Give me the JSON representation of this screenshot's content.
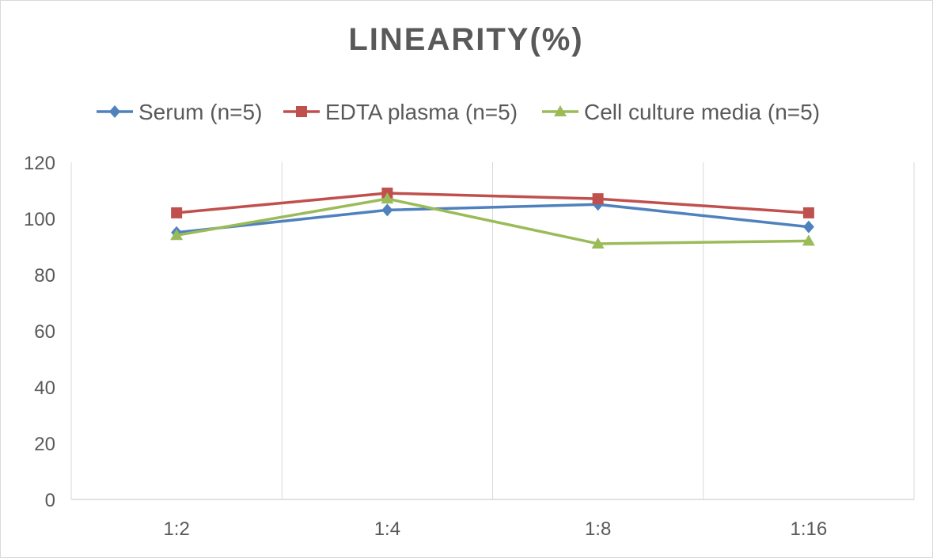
{
  "chart_data": {
    "type": "line",
    "title": "LINEARITY(%)",
    "categories": [
      "1:2",
      "1:4",
      "1:8",
      "1:16"
    ],
    "ylim": [
      0,
      120
    ],
    "yticks": [
      0,
      20,
      40,
      60,
      80,
      100,
      120
    ],
    "grid": "vertical",
    "legend_position": "top",
    "series": [
      {
        "name": "Serum (n=5)",
        "values": [
          95,
          103,
          105,
          97
        ],
        "color": "#4f81bd",
        "marker": "diamond"
      },
      {
        "name": "EDTA plasma (n=5)",
        "values": [
          102,
          109,
          107,
          102
        ],
        "color": "#c0504d",
        "marker": "square"
      },
      {
        "name": "Cell culture media (n=5)",
        "values": [
          94,
          107,
          91,
          92
        ],
        "color": "#9bbb59",
        "marker": "triangle"
      }
    ]
  }
}
